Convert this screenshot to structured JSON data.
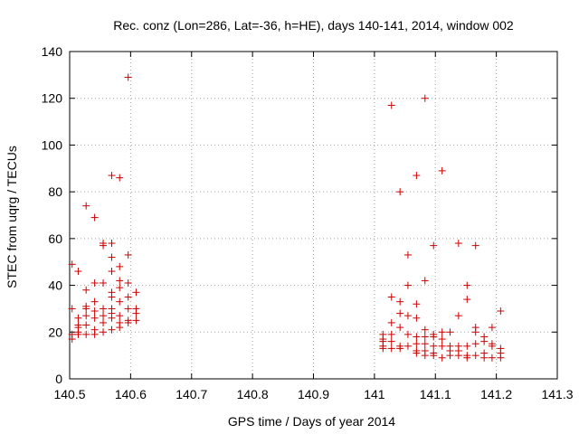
{
  "chart_data": {
    "type": "scatter",
    "title": "Rec. conz (Lon=286, Lat=-36, h=HE), days 140-141, 2014, window 002",
    "xlabel": "GPS time / Days of year 2014",
    "ylabel": "STEC from uqrg / TECUs",
    "xlim": [
      140.5,
      141.3
    ],
    "ylim": [
      0,
      140
    ],
    "xticks": [
      140.5,
      140.6,
      140.7,
      140.8,
      140.9,
      141.0,
      141.1,
      141.2,
      141.3
    ],
    "xtick_labels": [
      "140.5",
      "140.6",
      "140.7",
      "140.8",
      "140.9",
      "141",
      "141.1",
      "141.2",
      "141.3"
    ],
    "yticks": [
      0,
      20,
      40,
      60,
      80,
      100,
      120,
      140
    ],
    "ytick_labels": [
      "0",
      "20",
      "40",
      "60",
      "80",
      "100",
      "120",
      "140"
    ],
    "grid": true,
    "marker": "+",
    "color": "#cc0000",
    "series": [
      {
        "name": "STEC",
        "x": [
          140.504,
          140.504,
          140.504,
          140.504,
          140.514,
          140.514,
          140.514,
          140.514,
          140.514,
          140.514,
          140.527,
          140.527,
          140.527,
          140.527,
          140.527,
          140.527,
          140.527,
          140.541,
          140.541,
          140.541,
          140.541,
          140.541,
          140.541,
          140.541,
          140.555,
          140.555,
          140.555,
          140.555,
          140.555,
          140.555,
          140.555,
          140.569,
          140.569,
          140.569,
          140.569,
          140.569,
          140.569,
          140.569,
          140.569,
          140.569,
          140.569,
          140.582,
          140.582,
          140.582,
          140.582,
          140.582,
          140.582,
          140.582,
          140.582,
          140.596,
          140.596,
          140.596,
          140.596,
          140.596,
          140.596,
          140.596,
          140.609,
          140.609,
          140.609,
          140.609,
          141.014,
          141.014,
          141.014,
          141.014,
          141.014,
          141.028,
          141.028,
          141.028,
          141.028,
          141.028,
          141.028,
          141.042,
          141.042,
          141.042,
          141.042,
          141.042,
          141.042,
          141.055,
          141.055,
          141.055,
          141.055,
          141.055,
          141.069,
          141.069,
          141.069,
          141.069,
          141.069,
          141.069,
          141.069,
          141.083,
          141.083,
          141.083,
          141.083,
          141.083,
          141.083,
          141.083,
          141.097,
          141.097,
          141.097,
          141.097,
          141.097,
          141.097,
          141.111,
          141.111,
          141.111,
          141.111,
          141.111,
          141.124,
          141.124,
          141.124,
          141.124,
          141.138,
          141.138,
          141.138,
          141.138,
          141.138,
          141.152,
          141.152,
          141.152,
          141.152,
          141.152,
          141.166,
          141.166,
          141.166,
          141.166,
          141.166,
          141.18,
          141.18,
          141.18,
          141.18,
          141.193,
          141.193,
          141.193,
          141.193,
          141.207,
          141.207,
          141.207,
          141.207
        ],
        "y": [
          49,
          30,
          19,
          17,
          46,
          26,
          23,
          22,
          20,
          19,
          74,
          38,
          31,
          30,
          27,
          23,
          19,
          69,
          41,
          33,
          29,
          26,
          21,
          19,
          58,
          57,
          41,
          30,
          27,
          24,
          20,
          87,
          58,
          52,
          46,
          37,
          35,
          30,
          28,
          26,
          21,
          86,
          48,
          42,
          39,
          33,
          27,
          24,
          22,
          129,
          53,
          41,
          35,
          30,
          25,
          24,
          37,
          30,
          28,
          25,
          19,
          17,
          16,
          14,
          13,
          117,
          35,
          24,
          19,
          16,
          13,
          80,
          33,
          28,
          22,
          14,
          13,
          53,
          40,
          27,
          19,
          14,
          87,
          32,
          26,
          18,
          15,
          12,
          11,
          120,
          42,
          21,
          18,
          15,
          12,
          10,
          57,
          19,
          18,
          14,
          11,
          10,
          89,
          20,
          17,
          14,
          9,
          20,
          14,
          12,
          10,
          58,
          27,
          14,
          12,
          10,
          40,
          34,
          14,
          10,
          9,
          57,
          22,
          20,
          15,
          10,
          18,
          16,
          11,
          9,
          22,
          15,
          14,
          9,
          29,
          13,
          11,
          9
        ]
      }
    ]
  }
}
